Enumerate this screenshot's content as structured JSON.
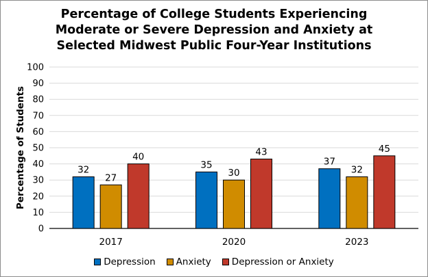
{
  "chart_data": {
    "type": "bar",
    "title_lines": [
      "Percentage of College Students Experiencing",
      "Moderate or Severe Depression and Anxiety at",
      "Selected Midwest Public Four-Year Institutions"
    ],
    "xlabel": "",
    "ylabel": "Percentage of Students",
    "ylim": [
      0,
      100
    ],
    "yticks": [
      0,
      10,
      20,
      30,
      40,
      50,
      60,
      70,
      80,
      90,
      100
    ],
    "grid": true,
    "legend_position": "bottom",
    "categories": [
      "2017",
      "2020",
      "2023"
    ],
    "series": [
      {
        "name": "Depression",
        "color": "#0070c0",
        "values": [
          32,
          35,
          37
        ]
      },
      {
        "name": "Anxiety",
        "color": "#d08c00",
        "values": [
          27,
          30,
          32
        ]
      },
      {
        "name": "Depression or Anxiety",
        "color": "#c0392b",
        "values": [
          40,
          43,
          45
        ]
      }
    ]
  }
}
